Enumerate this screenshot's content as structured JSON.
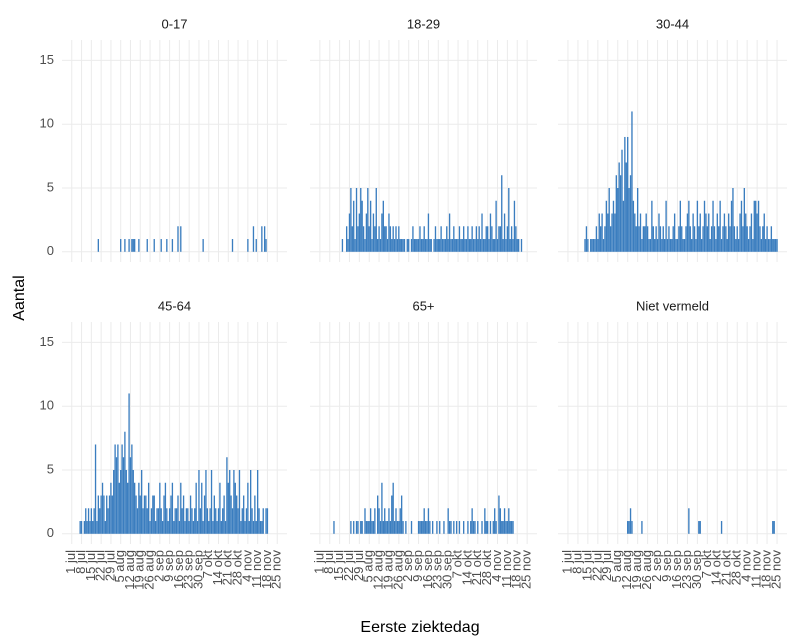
{
  "chart_data": {
    "type": "bar",
    "x_label": "Eerste ziektedag",
    "y_label": "Aantal",
    "color": "#3a7dbf",
    "grid": true,
    "x": [
      0,
      1,
      2,
      3,
      4,
      5,
      6,
      7,
      8,
      9,
      10,
      11,
      12,
      13,
      14,
      15,
      16,
      17,
      18,
      19,
      20,
      21,
      22,
      23,
      24,
      25,
      26,
      27,
      28,
      29,
      30,
      31,
      32,
      33,
      34,
      35,
      36,
      37,
      38,
      39,
      40,
      41,
      42,
      43,
      44,
      45,
      46,
      47,
      48,
      49,
      50,
      51,
      52,
      53,
      54,
      55,
      56,
      57,
      58,
      59,
      60,
      61,
      62,
      63,
      64,
      65,
      66,
      67,
      68,
      69,
      70,
      71,
      72,
      73,
      74,
      75,
      76,
      77,
      78,
      79,
      80,
      81,
      82,
      83,
      84,
      85,
      86,
      87,
      88,
      89,
      90,
      91,
      92,
      93,
      94,
      95,
      96,
      97,
      98,
      99,
      100,
      101,
      102,
      103,
      104,
      105,
      106,
      107,
      108,
      109,
      110,
      111,
      112,
      113,
      114,
      115,
      116,
      117,
      118,
      119,
      120,
      121,
      122,
      123,
      124,
      125,
      126,
      127,
      128,
      129,
      130,
      131,
      132,
      133,
      134,
      135,
      136,
      137,
      138,
      139,
      140,
      141,
      142,
      143,
      144,
      145,
      146,
      147
    ],
    "xlim": [
      -7,
      154
    ],
    "xticks": [
      {
        "value": 0,
        "label": "1 jul"
      },
      {
        "value": 7,
        "label": "8 jul"
      },
      {
        "value": 14,
        "label": "15 jul"
      },
      {
        "value": 21,
        "label": "22 jul"
      },
      {
        "value": 28,
        "label": "29 jul"
      },
      {
        "value": 35,
        "label": "5 aug"
      },
      {
        "value": 42,
        "label": "12 aug"
      },
      {
        "value": 49,
        "label": "19 aug"
      },
      {
        "value": 56,
        "label": "26 aug"
      },
      {
        "value": 63,
        "label": "2 sep"
      },
      {
        "value": 70,
        "label": "9 sep"
      },
      {
        "value": 77,
        "label": "16 sep"
      },
      {
        "value": 84,
        "label": "23 sep"
      },
      {
        "value": 91,
        "label": "30 sep"
      },
      {
        "value": 98,
        "label": "7 okt"
      },
      {
        "value": 105,
        "label": "14 okt"
      },
      {
        "value": 112,
        "label": "21 okt"
      },
      {
        "value": 119,
        "label": "28 okt"
      },
      {
        "value": 126,
        "label": "4 nov"
      },
      {
        "value": 133,
        "label": "11 nov"
      },
      {
        "value": 140,
        "label": "18 nov"
      },
      {
        "value": 147,
        "label": "25 nov"
      }
    ],
    "ylim": [
      -0.8,
      16.6
    ],
    "yticks": [
      0,
      5,
      10,
      15
    ],
    "series": [
      {
        "name": "0-17",
        "values": [
          0,
          0,
          0,
          0,
          0,
          0,
          0,
          0,
          0,
          0,
          0,
          0,
          0,
          0,
          0,
          0,
          0,
          0,
          0,
          1,
          0,
          0,
          0,
          0,
          0,
          0,
          0,
          0,
          0,
          0,
          0,
          0,
          0,
          0,
          0,
          1,
          0,
          0,
          1,
          0,
          0,
          1,
          0,
          1,
          1,
          1,
          0,
          0,
          1,
          0,
          0,
          0,
          0,
          0,
          1,
          0,
          0,
          0,
          0,
          1,
          0,
          0,
          0,
          0,
          1,
          0,
          0,
          0,
          1,
          0,
          0,
          0,
          1,
          0,
          0,
          0,
          2,
          0,
          2,
          0,
          0,
          0,
          0,
          0,
          0,
          0,
          0,
          0,
          0,
          0,
          0,
          0,
          0,
          0,
          1,
          0,
          0,
          0,
          0,
          0,
          0,
          0,
          0,
          0,
          0,
          0,
          0,
          0,
          0,
          0,
          0,
          0,
          0,
          0,
          0,
          1,
          0,
          0,
          0,
          0,
          0,
          0,
          0,
          0,
          0,
          0,
          1,
          0,
          0,
          0,
          2,
          0,
          1,
          0,
          0,
          0,
          2,
          0,
          2,
          1,
          0,
          0,
          0,
          0,
          0,
          0,
          0,
          0
        ]
      },
      {
        "name": "18-29",
        "values": [
          0,
          0,
          0,
          0,
          0,
          0,
          0,
          0,
          0,
          0,
          0,
          0,
          0,
          0,
          0,
          0,
          1,
          0,
          0,
          2,
          1,
          3,
          5,
          2,
          4,
          1,
          5,
          2,
          3,
          5,
          4,
          2,
          1,
          3,
          5,
          2,
          4,
          1,
          3,
          2,
          5,
          1,
          2,
          1,
          3,
          4,
          2,
          2,
          1,
          3,
          2,
          1,
          2,
          1,
          2,
          1,
          2,
          1,
          1,
          1,
          1,
          0,
          1,
          1,
          0,
          1,
          2,
          1,
          1,
          1,
          1,
          2,
          1,
          1,
          2,
          1,
          1,
          3,
          1,
          1,
          0,
          1,
          2,
          1,
          1,
          1,
          2,
          1,
          1,
          1,
          2,
          1,
          3,
          1,
          1,
          2,
          1,
          1,
          1,
          2,
          1,
          1,
          2,
          1,
          1,
          2,
          1,
          1,
          2,
          1,
          1,
          2,
          1,
          2,
          1,
          3,
          1,
          1,
          2,
          2,
          1,
          3,
          2,
          1,
          1,
          4,
          1,
          2,
          2,
          6,
          1,
          3,
          1,
          2,
          5,
          1,
          2,
          1,
          4,
          2,
          1,
          1,
          0,
          1,
          0,
          0,
          0,
          0
        ]
      },
      {
        "name": "30-44",
        "values": [
          0,
          0,
          0,
          0,
          0,
          0,
          0,
          0,
          0,
          0,
          0,
          0,
          1,
          2,
          1,
          0,
          1,
          1,
          1,
          1,
          2,
          1,
          3,
          2,
          3,
          1,
          2,
          4,
          3,
          5,
          2,
          3,
          4,
          3,
          6,
          5,
          7,
          6,
          8,
          4,
          9,
          7,
          9,
          5,
          6,
          11,
          4,
          3,
          2,
          5,
          2,
          3,
          1,
          2,
          2,
          3,
          2,
          1,
          1,
          4,
          2,
          1,
          2,
          1,
          3,
          2,
          1,
          2,
          1,
          4,
          1,
          2,
          1,
          1,
          2,
          3,
          1,
          1,
          2,
          4,
          2,
          1,
          1,
          2,
          3,
          4,
          2,
          1,
          3,
          2,
          1,
          4,
          2,
          3,
          1,
          2,
          4,
          3,
          2,
          3,
          1,
          2,
          4,
          2,
          1,
          3,
          2,
          4,
          1,
          2,
          3,
          2,
          1,
          3,
          2,
          4,
          5,
          2,
          1,
          2,
          1,
          3,
          4,
          2,
          5,
          3,
          2,
          1,
          2,
          3,
          1,
          4,
          4,
          3,
          4,
          2,
          1,
          2,
          3,
          1,
          2,
          1,
          1,
          2,
          1,
          1,
          1,
          1
        ]
      },
      {
        "name": "45-64",
        "values": [
          0,
          0,
          0,
          0,
          0,
          0,
          1,
          1,
          0,
          1,
          2,
          1,
          2,
          1,
          2,
          1,
          2,
          7,
          1,
          3,
          2,
          3,
          4,
          3,
          1,
          3,
          2,
          3,
          4,
          3,
          5,
          7,
          6,
          7,
          4,
          5,
          7,
          6,
          8,
          5,
          4,
          11,
          6,
          7,
          5,
          4,
          3,
          2,
          4,
          3,
          5,
          2,
          3,
          3,
          2,
          4,
          1,
          2,
          3,
          3,
          1,
          2,
          2,
          4,
          2,
          1,
          3,
          4,
          2,
          1,
          2,
          3,
          4,
          1,
          2,
          2,
          3,
          1,
          4,
          2,
          3,
          1,
          2,
          2,
          1,
          3,
          2,
          1,
          2,
          4,
          1,
          5,
          2,
          4,
          1,
          3,
          5,
          2,
          1,
          2,
          5,
          1,
          3,
          2,
          1,
          2,
          4,
          1,
          2,
          3,
          1,
          6,
          4,
          5,
          3,
          2,
          5,
          4,
          3,
          2,
          5,
          1,
          2,
          3,
          1,
          2,
          4,
          1,
          5,
          2,
          1,
          3,
          1,
          5,
          2,
          1,
          1,
          2,
          0,
          2,
          2,
          0,
          0,
          0,
          0,
          0,
          0,
          0
        ]
      },
      {
        "name": "65+",
        "values": [
          0,
          0,
          0,
          0,
          0,
          0,
          0,
          0,
          0,
          0,
          1,
          0,
          0,
          0,
          0,
          0,
          0,
          0,
          0,
          0,
          0,
          0,
          1,
          0,
          1,
          0,
          1,
          1,
          0,
          1,
          1,
          0,
          2,
          1,
          1,
          1,
          2,
          1,
          1,
          2,
          0,
          3,
          2,
          1,
          4,
          1,
          2,
          1,
          1,
          2,
          1,
          3,
          4,
          1,
          2,
          1,
          1,
          2,
          3,
          1,
          0,
          1,
          0,
          0,
          0,
          1,
          0,
          0,
          0,
          0,
          1,
          1,
          1,
          1,
          2,
          1,
          1,
          2,
          1,
          0,
          1,
          0,
          0,
          1,
          0,
          1,
          0,
          0,
          1,
          0,
          0,
          2,
          1,
          1,
          0,
          1,
          0,
          1,
          0,
          1,
          0,
          0,
          1,
          0,
          0,
          1,
          0,
          1,
          2,
          1,
          1,
          0,
          1,
          0,
          0,
          1,
          0,
          2,
          1,
          1,
          0,
          1,
          0,
          1,
          2,
          1,
          0,
          3,
          2,
          1,
          1,
          2,
          1,
          1,
          2,
          1,
          1,
          1,
          0,
          0,
          0,
          0,
          0,
          0,
          0,
          0,
          0,
          0
        ]
      },
      {
        "name": "Niet vermeld",
        "values": [
          0,
          0,
          0,
          0,
          0,
          0,
          0,
          0,
          0,
          0,
          0,
          0,
          0,
          0,
          0,
          0,
          0,
          0,
          0,
          0,
          0,
          0,
          0,
          0,
          0,
          0,
          0,
          0,
          0,
          0,
          0,
          0,
          0,
          0,
          0,
          0,
          0,
          0,
          0,
          0,
          0,
          0,
          1,
          1,
          2,
          1,
          0,
          0,
          0,
          0,
          0,
          0,
          1,
          0,
          0,
          0,
          0,
          0,
          0,
          0,
          0,
          0,
          0,
          0,
          0,
          0,
          0,
          0,
          0,
          0,
          0,
          0,
          0,
          0,
          0,
          0,
          0,
          0,
          0,
          0,
          0,
          0,
          0,
          0,
          0,
          2,
          0,
          0,
          0,
          0,
          0,
          0,
          1,
          1,
          0,
          0,
          0,
          0,
          0,
          0,
          0,
          0,
          0,
          0,
          0,
          0,
          0,
          0,
          1,
          0,
          0,
          0,
          0,
          0,
          0,
          0,
          0,
          0,
          0,
          0,
          0,
          0,
          0,
          0,
          0,
          0,
          0,
          0,
          0,
          0,
          0,
          0,
          0,
          0,
          0,
          0,
          0,
          0,
          0,
          0,
          0,
          0,
          0,
          0,
          1,
          1,
          0,
          0
        ]
      }
    ]
  }
}
